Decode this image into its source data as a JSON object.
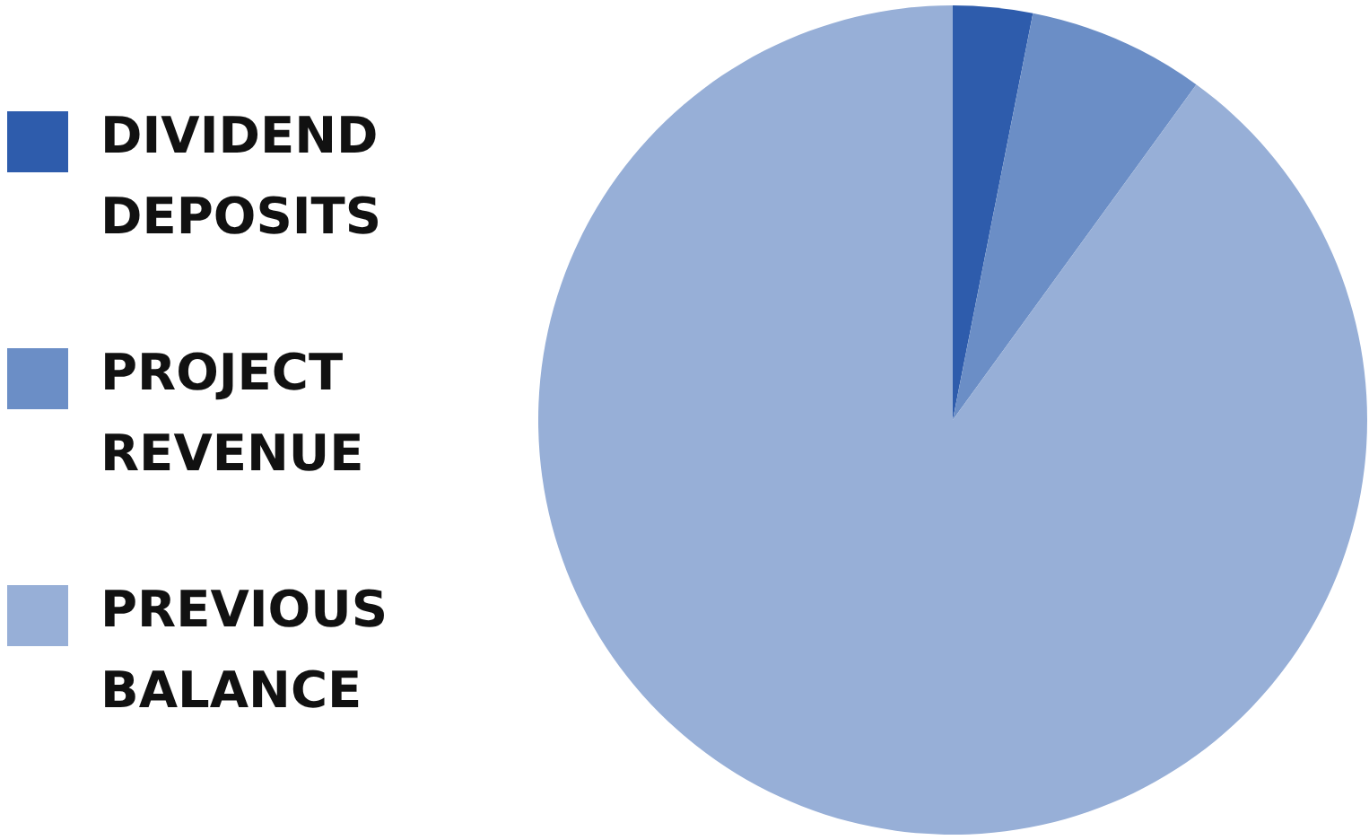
{
  "chart_data": {
    "type": "pie",
    "categories": [
      "DIVIDEND DEPOSITS",
      "PROJECT REVENUE",
      "PREVIOUS BALANCE"
    ],
    "values": [
      3.1,
      6.9,
      90
    ],
    "colors": [
      "#2e5cac",
      "#6b8ec6",
      "#97afd7"
    ],
    "legend": "left"
  }
}
